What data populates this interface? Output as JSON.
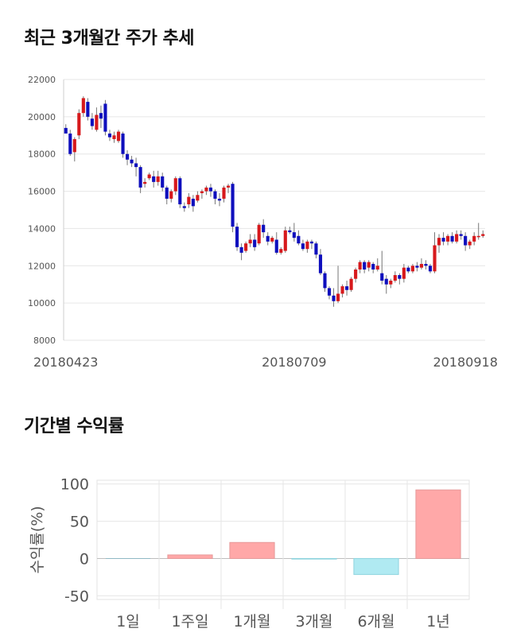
{
  "titles": {
    "price_trend": "최근 3개월간 주가 추세",
    "period_returns": "기간별 수익률"
  },
  "chart_data": [
    {
      "type": "candlestick",
      "ylim": [
        8000,
        22000
      ],
      "yticks": [
        "22000",
        "20000",
        "18000",
        "16000",
        "14000",
        "12000",
        "10000",
        "8000"
      ],
      "xlabels": [
        {
          "label": "20180423",
          "index": 0
        },
        {
          "label": "20180709",
          "index": 52
        },
        {
          "label": "20180918",
          "index": 91
        }
      ],
      "colors": {
        "up": "#d7191c",
        "down": "#0f0fbd",
        "wick": "#777777"
      },
      "grid": true,
      "candles": [
        [
          19400,
          19100,
          19200,
          19600
        ],
        [
          19100,
          18000,
          17900,
          19300
        ],
        [
          18100,
          18800,
          17600,
          18900
        ],
        [
          19000,
          20200,
          18800,
          20400
        ],
        [
          20200,
          21000,
          20000,
          21100
        ],
        [
          20800,
          20000,
          19800,
          21000
        ],
        [
          19900,
          19500,
          19300,
          20200
        ],
        [
          19300,
          20100,
          19200,
          20500
        ],
        [
          20200,
          19900,
          19400,
          20600
        ],
        [
          20700,
          19200,
          19000,
          20900
        ],
        [
          19100,
          18900,
          18700,
          19300
        ],
        [
          18800,
          19000,
          18600,
          19200
        ],
        [
          18700,
          19200,
          18600,
          19300
        ],
        [
          19100,
          18000,
          17800,
          19200
        ],
        [
          18000,
          17700,
          17400,
          18200
        ],
        [
          17700,
          17500,
          17300,
          17900
        ],
        [
          17500,
          17300,
          16800,
          17800
        ],
        [
          17300,
          16200,
          15900,
          17400
        ],
        [
          16400,
          16500,
          16200,
          16700
        ],
        [
          16700,
          16900,
          16600,
          17000
        ],
        [
          16800,
          16500,
          16200,
          17100
        ],
        [
          16500,
          16800,
          16300,
          17100
        ],
        [
          16800,
          16200,
          16000,
          17000
        ],
        [
          16200,
          15600,
          15300,
          16300
        ],
        [
          15600,
          16000,
          15400,
          16100
        ],
        [
          16000,
          16700,
          15800,
          16800
        ],
        [
          16700,
          15300,
          15100,
          16800
        ],
        [
          15200,
          15100,
          14900,
          15400
        ],
        [
          15300,
          15700,
          15100,
          15900
        ],
        [
          15600,
          15200,
          14900,
          15800
        ],
        [
          15500,
          15800,
          15400,
          16000
        ],
        [
          15900,
          16000,
          15600,
          16100
        ],
        [
          16000,
          16200,
          15800,
          16300
        ],
        [
          16200,
          16000,
          15700,
          16400
        ],
        [
          16000,
          15600,
          15300,
          16100
        ],
        [
          15600,
          15500,
          15200,
          15900
        ],
        [
          15600,
          16200,
          15400,
          16300
        ],
        [
          16200,
          16300,
          15900,
          16400
        ],
        [
          16400,
          14100,
          13800,
          16500
        ],
        [
          14100,
          13000,
          12800,
          14300
        ],
        [
          13000,
          12700,
          12300,
          13200
        ],
        [
          12800,
          13200,
          12700,
          13300
        ],
        [
          13200,
          13400,
          13000,
          13700
        ],
        [
          13400,
          13000,
          12800,
          13700
        ],
        [
          13200,
          14200,
          13100,
          14300
        ],
        [
          14200,
          13800,
          13500,
          14500
        ],
        [
          13600,
          13300,
          13100,
          13800
        ],
        [
          13300,
          13500,
          13200,
          13600
        ],
        [
          13400,
          12700,
          12600,
          13800
        ],
        [
          12700,
          12900,
          12600,
          13000
        ],
        [
          12800,
          13900,
          12700,
          14100
        ],
        [
          13900,
          13800,
          13700,
          14100
        ],
        [
          13800,
          13500,
          13300,
          14300
        ],
        [
          13600,
          13200,
          13100,
          13900
        ],
        [
          13200,
          12900,
          12800,
          13400
        ],
        [
          12900,
          13300,
          12700,
          13400
        ],
        [
          13300,
          13200,
          12900,
          13400
        ],
        [
          13200,
          12600,
          12400,
          13300
        ],
        [
          12600,
          11600,
          11500,
          12900
        ],
        [
          11600,
          10800,
          10600,
          11700
        ],
        [
          10800,
          10400,
          10200,
          10900
        ],
        [
          10400,
          10100,
          9800,
          10800
        ],
        [
          10100,
          10500,
          10000,
          12000
        ],
        [
          10500,
          10900,
          10300,
          11000
        ],
        [
          10900,
          10700,
          10400,
          11200
        ],
        [
          10700,
          11300,
          10600,
          11400
        ],
        [
          11300,
          11800,
          11100,
          11900
        ],
        [
          11800,
          12200,
          11600,
          12300
        ],
        [
          12200,
          11800,
          11600,
          12300
        ],
        [
          11900,
          12200,
          11700,
          12300
        ],
        [
          12100,
          11800,
          11600,
          12200
        ],
        [
          11800,
          12000,
          11700,
          12400
        ],
        [
          11600,
          11200,
          11000,
          12800
        ],
        [
          11300,
          11000,
          10500,
          11500
        ],
        [
          11000,
          11200,
          10800,
          11300
        ],
        [
          11200,
          11500,
          11100,
          11700
        ],
        [
          11500,
          11300,
          11000,
          11600
        ],
        [
          11300,
          11900,
          11100,
          12100
        ],
        [
          11900,
          11700,
          11600,
          12000
        ],
        [
          11700,
          12000,
          11600,
          12100
        ],
        [
          12000,
          11900,
          11700,
          12200
        ],
        [
          11900,
          12100,
          11800,
          12400
        ],
        [
          12100,
          12000,
          11800,
          12300
        ],
        [
          12000,
          11700,
          11600,
          12100
        ],
        [
          11700,
          13100,
          11600,
          13800
        ],
        [
          13100,
          13500,
          12700,
          13700
        ],
        [
          13500,
          13300,
          13100,
          13800
        ],
        [
          13300,
          13600,
          13100,
          13700
        ],
        [
          13600,
          13300,
          13200,
          13800
        ],
        [
          13300,
          13700,
          13200,
          13900
        ],
        [
          13700,
          13600,
          13400,
          13900
        ],
        [
          13600,
          13100,
          12800,
          13800
        ],
        [
          13100,
          13300,
          12900,
          13400
        ],
        [
          13300,
          13600,
          13100,
          13800
        ],
        [
          13600,
          13600,
          13400,
          14300
        ],
        [
          13600,
          13700,
          13500,
          13900
        ]
      ]
    },
    {
      "type": "bar",
      "ylabel": "수익률(%)",
      "ylim": [
        -55,
        105
      ],
      "yticks": [
        "100",
        "50",
        "0",
        "-50"
      ],
      "categories": [
        "1일",
        "1주일",
        "1개월",
        "3개월",
        "6개월",
        "1년"
      ],
      "values": [
        0,
        4.8,
        21.5,
        -0.8,
        -21.5,
        92
      ],
      "colors": {
        "positive": "#ffa8a8",
        "negative": "#b0eaf2",
        "positive_edge": "#e69a9a",
        "negative_edge": "#8fd4de"
      }
    }
  ]
}
